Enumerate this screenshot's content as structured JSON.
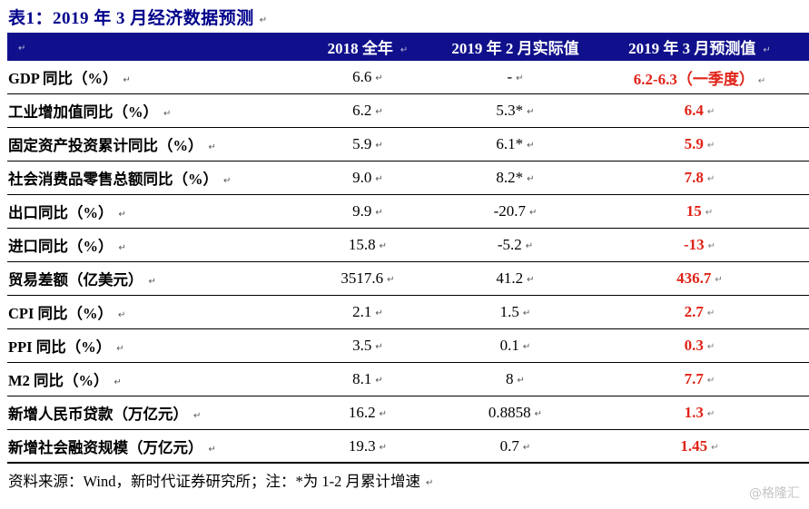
{
  "page": {
    "watermark": "@格隆汇",
    "paragraph_mark": "↵"
  },
  "table": {
    "title": "表1：2019 年 3 月经济数据预测",
    "columns": [
      "2018 全年",
      "2019 年 2 月实际值",
      "2019 年 3 月预测值"
    ],
    "rows": [
      {
        "label": "GDP 同比（%）",
        "values": [
          "6.6",
          "-",
          "6.2-6.3（一季度）"
        ]
      },
      {
        "label": "工业增加值同比（%）",
        "values": [
          "6.2",
          "5.3*",
          "6.4"
        ]
      },
      {
        "label": "固定资产投资累计同比（%）",
        "values": [
          "5.9",
          "6.1*",
          "5.9"
        ]
      },
      {
        "label": "社会消费品零售总额同比（%）",
        "values": [
          "9.0",
          "8.2*",
          "7.8"
        ]
      },
      {
        "label": "出口同比（%）",
        "values": [
          "9.9",
          "-20.7",
          "15"
        ]
      },
      {
        "label": "进口同比（%）",
        "values": [
          "15.8",
          "-5.2",
          "-13"
        ]
      },
      {
        "label": "贸易差额（亿美元）",
        "values": [
          "3517.6",
          "41.2",
          "436.7"
        ]
      },
      {
        "label": "CPI 同比（%）",
        "values": [
          "2.1",
          "1.5",
          "2.7"
        ]
      },
      {
        "label": "PPI 同比（%）",
        "values": [
          "3.5",
          "0.1",
          "0.3"
        ]
      },
      {
        "label": "M2 同比（%）",
        "values": [
          "8.1",
          "8",
          "7.7"
        ]
      },
      {
        "label": "新增人民币贷款（万亿元）",
        "values": [
          "16.2",
          "0.8858",
          "1.3"
        ]
      },
      {
        "label": "新增社会融资规模（万亿元）",
        "values": [
          "19.3",
          "0.7",
          "1.45"
        ]
      }
    ],
    "source_note": "资料来源：Wind，新时代证券研究所；注：*为 1-2 月累计增速",
    "colors": {
      "title": "#00008b",
      "header_bg": "#10108c",
      "forecast_red": "#e02318",
      "watermark_gray": "#c4c4c4"
    }
  }
}
